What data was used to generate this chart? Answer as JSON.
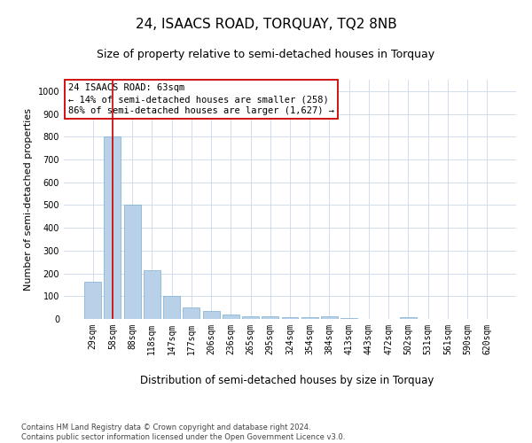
{
  "title": "24, ISAACS ROAD, TORQUAY, TQ2 8NB",
  "subtitle": "Size of property relative to semi-detached houses in Torquay",
  "xlabel": "Distribution of semi-detached houses by size in Torquay",
  "ylabel": "Number of semi-detached properties",
  "footer_line1": "Contains HM Land Registry data © Crown copyright and database right 2024.",
  "footer_line2": "Contains public sector information licensed under the Open Government Licence v3.0.",
  "annotation_title": "24 ISAACS ROAD: 63sqm",
  "annotation_line1": "← 14% of semi-detached houses are smaller (258)",
  "annotation_line2": "86% of semi-detached houses are larger (1,627) →",
  "bar_labels": [
    "29sqm",
    "58sqm",
    "88sqm",
    "118sqm",
    "147sqm",
    "177sqm",
    "206sqm",
    "236sqm",
    "265sqm",
    "295sqm",
    "324sqm",
    "354sqm",
    "384sqm",
    "413sqm",
    "443sqm",
    "472sqm",
    "502sqm",
    "531sqm",
    "561sqm",
    "590sqm",
    "620sqm"
  ],
  "bar_values": [
    165,
    800,
    500,
    215,
    100,
    52,
    35,
    20,
    12,
    10,
    8,
    8,
    10,
    2,
    0,
    0,
    8,
    0,
    0,
    0,
    0
  ],
  "bar_color": "#b8d0e8",
  "bar_edge_color": "#7aafd4",
  "highlight_bar_index": 1,
  "highlight_color": "#cc0000",
  "annotation_box_color": "#ffffff",
  "annotation_box_edge": "#cc0000",
  "ylim": [
    0,
    1050
  ],
  "yticks": [
    0,
    100,
    200,
    300,
    400,
    500,
    600,
    700,
    800,
    900,
    1000
  ],
  "grid_color": "#d0dded",
  "bg_color": "#ffffff",
  "title_fontsize": 11,
  "subtitle_fontsize": 9,
  "axis_label_fontsize": 8,
  "tick_fontsize": 7,
  "annotation_fontsize": 7.5,
  "footer_fontsize": 6
}
